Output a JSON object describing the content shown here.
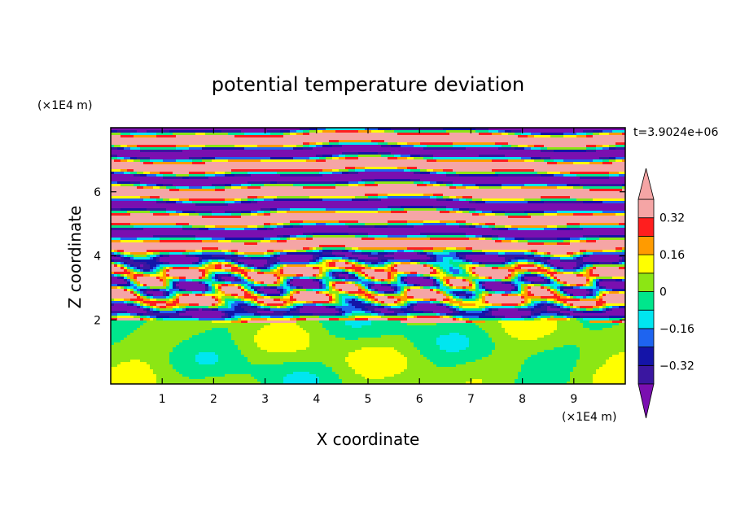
{
  "chart_data": {
    "type": "heatmap",
    "title": "potential temperature deviation",
    "time_label": "t=3.9024e+06",
    "xlabel": "X coordinate",
    "ylabel": "Z coordinate",
    "x_unit": "(×1E4 m)",
    "y_unit": "(×1E4 m)",
    "xlim": [
      0,
      10
    ],
    "ylim": [
      0,
      8
    ],
    "x_ticks": [
      "1",
      "2",
      "3",
      "4",
      "5",
      "6",
      "7",
      "8",
      "9"
    ],
    "y_ticks": [
      "2",
      "4",
      "6"
    ],
    "colorbar": {
      "levels": [
        -0.4,
        -0.32,
        -0.24,
        -0.16,
        -0.08,
        0,
        0.08,
        0.16,
        0.24,
        0.32,
        0.4
      ],
      "colors": [
        "#7a0fb0",
        "#3a16a0",
        "#1414a8",
        "#1e64f0",
        "#00e6f0",
        "#00e68c",
        "#8ce614",
        "#ffff00",
        "#ff9b00",
        "#ff1e1e",
        "#f5a5a5"
      ],
      "tick_labels": [
        "0.32",
        "0.16",
        "0",
        "−0.16",
        "−0.32"
      ],
      "tick_values": [
        0.32,
        0.16,
        0,
        -0.16,
        -0.32
      ],
      "extend": "both"
    },
    "field_description": "Lower layer (z below ~2) near-neutral green/lime; upper layer (z above ~2) alternating horizontal bands of strong positive (pink) and negative (purple) deviation with turbulent mixing near z = 2–4."
  }
}
